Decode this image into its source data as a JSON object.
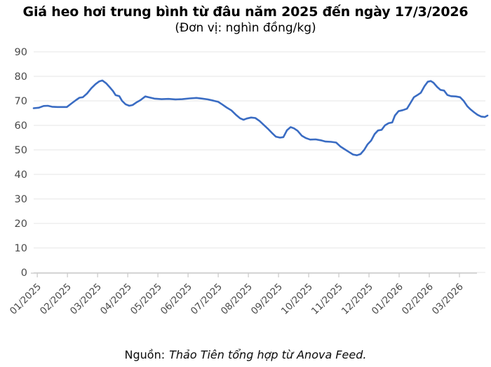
{
  "header": {
    "title": "Giá heo hơi trung bình từ đâu năm 2025 đến ngày 17/3/2026",
    "subtitle": "(Đơn vị: nghìn đồng/kg)"
  },
  "footer": {
    "label": "Nguồn:",
    "source": "Thảo Tiên tổng hợp từ Anova Feed."
  },
  "chart_data": {
    "type": "line",
    "title": "Giá heo hơi trung bình từ đầu năm 2025 đến ngày 17/3/2026",
    "ylabel": "nghìn đồng/kg",
    "xlabel": "",
    "ylim": [
      0,
      90
    ],
    "y_tick_labels": [
      "0",
      "10",
      "20",
      "30",
      "40",
      "50",
      "60",
      "70",
      "80",
      "90"
    ],
    "x_tick_labels": [
      "01/2025",
      "02/2025",
      "03/2025",
      "04/2025",
      "05/2025",
      "06/2025",
      "07/2025",
      "08/2025",
      "09/2025",
      "10/2025",
      "11/2025",
      "12/2025",
      "01/2026",
      "02/2026",
      "03/2026"
    ],
    "x_unit": "months since 01/2025 (fractional part = position within month)",
    "grid": "horizontal",
    "legend": "none",
    "line_color": "#3a6cc3",
    "grid_color": "#e4e4e4",
    "axis_color": "#c8c8c8",
    "tick_label_color": "#4a4a4a",
    "series": [
      {
        "name": "Giá heo hơi trung bình (nghìn đồng/kg)",
        "points": [
          [
            -0.12,
            67.0
          ],
          [
            0.05,
            67.2
          ],
          [
            0.21,
            67.9
          ],
          [
            0.35,
            68.0
          ],
          [
            0.49,
            67.6
          ],
          [
            0.67,
            67.5
          ],
          [
            0.98,
            67.5
          ],
          [
            1.14,
            69.0
          ],
          [
            1.28,
            70.3
          ],
          [
            1.4,
            71.3
          ],
          [
            1.51,
            71.5
          ],
          [
            1.65,
            73.0
          ],
          [
            1.79,
            75.1
          ],
          [
            1.93,
            76.8
          ],
          [
            2.05,
            77.9
          ],
          [
            2.16,
            78.3
          ],
          [
            2.28,
            77.2
          ],
          [
            2.4,
            75.6
          ],
          [
            2.51,
            74.0
          ],
          [
            2.6,
            72.3
          ],
          [
            2.72,
            71.9
          ],
          [
            2.81,
            70.0
          ],
          [
            2.93,
            68.6
          ],
          [
            3.05,
            68.0
          ],
          [
            3.16,
            68.3
          ],
          [
            3.28,
            69.3
          ],
          [
            3.42,
            70.3
          ],
          [
            3.58,
            71.8
          ],
          [
            3.72,
            71.4
          ],
          [
            3.88,
            70.9
          ],
          [
            4.12,
            70.7
          ],
          [
            4.35,
            70.8
          ],
          [
            4.58,
            70.6
          ],
          [
            4.81,
            70.7
          ],
          [
            5.05,
            71.0
          ],
          [
            5.28,
            71.2
          ],
          [
            5.47,
            70.9
          ],
          [
            5.65,
            70.6
          ],
          [
            5.84,
            70.1
          ],
          [
            6.0,
            69.6
          ],
          [
            6.14,
            68.5
          ],
          [
            6.28,
            67.3
          ],
          [
            6.44,
            66.1
          ],
          [
            6.58,
            64.4
          ],
          [
            6.72,
            62.9
          ],
          [
            6.84,
            62.3
          ],
          [
            6.95,
            62.8
          ],
          [
            7.09,
            63.2
          ],
          [
            7.23,
            63.0
          ],
          [
            7.37,
            61.8
          ],
          [
            7.51,
            60.2
          ],
          [
            7.65,
            58.6
          ],
          [
            7.79,
            56.8
          ],
          [
            7.91,
            55.4
          ],
          [
            8.05,
            55.0
          ],
          [
            8.16,
            55.2
          ],
          [
            8.28,
            58.0
          ],
          [
            8.4,
            59.3
          ],
          [
            8.51,
            58.8
          ],
          [
            8.63,
            57.8
          ],
          [
            8.77,
            55.8
          ],
          [
            8.91,
            54.8
          ],
          [
            9.05,
            54.2
          ],
          [
            9.23,
            54.3
          ],
          [
            9.4,
            53.9
          ],
          [
            9.56,
            53.4
          ],
          [
            9.74,
            53.3
          ],
          [
            9.91,
            53.0
          ],
          [
            10.05,
            51.4
          ],
          [
            10.19,
            50.3
          ],
          [
            10.33,
            49.2
          ],
          [
            10.47,
            48.1
          ],
          [
            10.6,
            47.8
          ],
          [
            10.72,
            48.3
          ],
          [
            10.84,
            50.0
          ],
          [
            10.95,
            52.2
          ],
          [
            11.07,
            53.8
          ],
          [
            11.19,
            56.5
          ],
          [
            11.3,
            57.9
          ],
          [
            11.42,
            58.2
          ],
          [
            11.53,
            60.0
          ],
          [
            11.65,
            60.9
          ],
          [
            11.77,
            61.2
          ],
          [
            11.86,
            64.0
          ],
          [
            11.98,
            65.8
          ],
          [
            12.12,
            66.2
          ],
          [
            12.26,
            66.8
          ],
          [
            12.37,
            69.0
          ],
          [
            12.49,
            71.5
          ],
          [
            12.6,
            72.3
          ],
          [
            12.72,
            73.3
          ],
          [
            12.84,
            76.0
          ],
          [
            12.95,
            77.8
          ],
          [
            13.05,
            78.1
          ],
          [
            13.14,
            77.4
          ],
          [
            13.26,
            75.7
          ],
          [
            13.37,
            74.5
          ],
          [
            13.49,
            74.2
          ],
          [
            13.6,
            72.4
          ],
          [
            13.72,
            71.9
          ],
          [
            13.88,
            71.8
          ],
          [
            14.02,
            71.5
          ],
          [
            14.14,
            70.0
          ],
          [
            14.26,
            67.8
          ],
          [
            14.37,
            66.5
          ],
          [
            14.49,
            65.3
          ],
          [
            14.6,
            64.3
          ],
          [
            14.72,
            63.6
          ],
          [
            14.84,
            63.4
          ],
          [
            14.93,
            64.0
          ]
        ]
      }
    ]
  }
}
